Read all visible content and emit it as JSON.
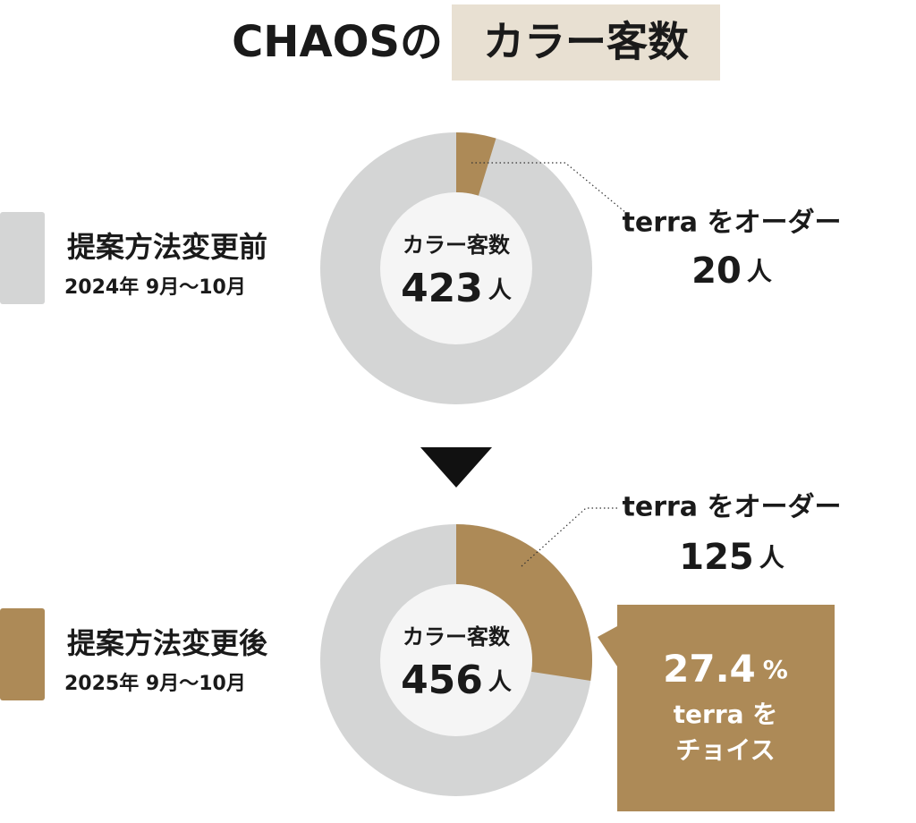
{
  "title": {
    "brand": "CHAOSの",
    "highlight": "カラー客数"
  },
  "chart_data": [
    {
      "type": "donut",
      "legend": {
        "name": "提案方法変更前",
        "period": "2024年 9月～10月",
        "color": "#d4d5d5"
      },
      "center_label": "カラー客数",
      "total": 423,
      "unit": "人",
      "segment": {
        "name": "terra をオーダー",
        "value": 20,
        "unit": "人",
        "color": "#ad8a57"
      }
    },
    {
      "type": "donut",
      "legend": {
        "name": "提案方法変更後",
        "period": "2025年 9月～10月",
        "color": "#ad8a57"
      },
      "center_label": "カラー客数",
      "total": 456,
      "unit": "人",
      "segment": {
        "name": "terra をオーダー",
        "value": 125,
        "unit": "人",
        "color": "#ad8a57"
      },
      "callout": {
        "value": 27.4,
        "unit": "%",
        "lines": [
          "terra を",
          "チョイス"
        ]
      }
    }
  ]
}
